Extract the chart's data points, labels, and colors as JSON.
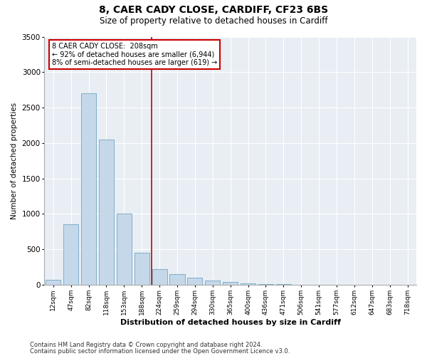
{
  "title1": "8, CAER CADY CLOSE, CARDIFF, CF23 6BS",
  "title2": "Size of property relative to detached houses in Cardiff",
  "xlabel": "Distribution of detached houses by size in Cardiff",
  "ylabel": "Number of detached properties",
  "categories": [
    "12sqm",
    "47sqm",
    "82sqm",
    "118sqm",
    "153sqm",
    "188sqm",
    "224sqm",
    "259sqm",
    "294sqm",
    "330sqm",
    "365sqm",
    "400sqm",
    "436sqm",
    "471sqm",
    "506sqm",
    "541sqm",
    "577sqm",
    "612sqm",
    "647sqm",
    "683sqm",
    "718sqm"
  ],
  "values": [
    75,
    850,
    2700,
    2050,
    1000,
    450,
    220,
    150,
    100,
    65,
    40,
    25,
    15,
    8,
    5,
    3,
    2,
    1,
    1,
    0,
    0
  ],
  "bar_color": "#c5d8ea",
  "bar_edge_color": "#7faec8",
  "background_color": "#e8eef4",
  "vline_color": "#cc0000",
  "vline_x": 5.57,
  "annotation_line1": "8 CAER CADY CLOSE:  208sqm",
  "annotation_line2": "← 92% of detached houses are smaller (6,944)",
  "annotation_line3": "8% of semi-detached houses are larger (619) →",
  "annotation_box_color": "#cc0000",
  "ylim": [
    0,
    3500
  ],
  "yticks": [
    0,
    500,
    1000,
    1500,
    2000,
    2500,
    3000,
    3500
  ],
  "footer1": "Contains HM Land Registry data © Crown copyright and database right 2024.",
  "footer2": "Contains public sector information licensed under the Open Government Licence v3.0."
}
